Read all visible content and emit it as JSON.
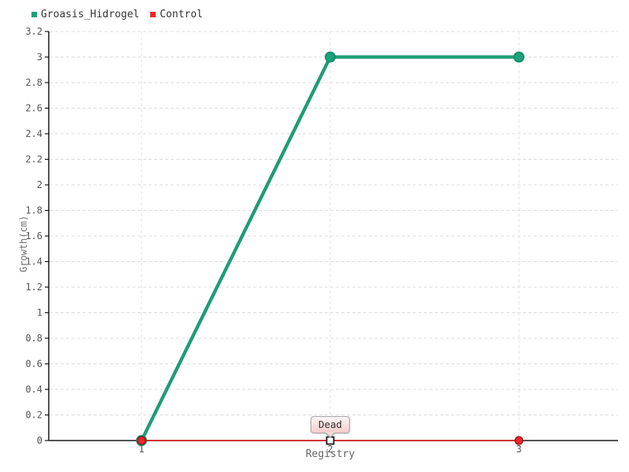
{
  "legend": {
    "items": [
      {
        "label": "Groasis_Hidrogel",
        "color": "#1fa179"
      },
      {
        "label": "Control",
        "color": "#e8282b"
      }
    ]
  },
  "axes": {
    "xlabel": "Registry",
    "ylabel": "Growth(cm)"
  },
  "tooltip": {
    "text": "Dead"
  },
  "chart_data": {
    "type": "line",
    "x": [
      1,
      2,
      3
    ],
    "xtick_labels": [
      "1",
      "2",
      "3"
    ],
    "series": [
      {
        "name": "Groasis_Hidrogel",
        "color": "#1fa179",
        "edge_color": "#148f6c",
        "marker": "circle",
        "values": [
          0,
          3,
          3
        ]
      },
      {
        "name": "Control",
        "color": "#e8282b",
        "edge_color": "#8f150f",
        "marker": "circle",
        "values": [
          0,
          0,
          0
        ]
      }
    ],
    "xlabel": "Registry",
    "ylabel": "Growth(cm)",
    "ylim": [
      0,
      3.2
    ],
    "yticks": [
      0,
      0.2,
      0.4,
      0.6,
      0.8,
      1,
      1.2,
      1.4,
      1.6,
      1.8,
      2,
      2.2,
      2.4,
      2.6,
      2.8,
      3,
      3.2
    ],
    "ytick_labels": [
      "0",
      "0.2",
      "0.4",
      "0.6",
      "0.8",
      "1",
      "1.2",
      "1.4",
      "1.6",
      "1.8",
      "2",
      "2.2",
      "2.4",
      "2.6",
      "2.8",
      "3",
      "3.2"
    ],
    "grid": "dashed",
    "legend_position": "top-left",
    "annotations": [
      {
        "text": "Dead",
        "x": 2,
        "y": 0,
        "series": "Control",
        "marker": "square-highlight"
      }
    ]
  }
}
